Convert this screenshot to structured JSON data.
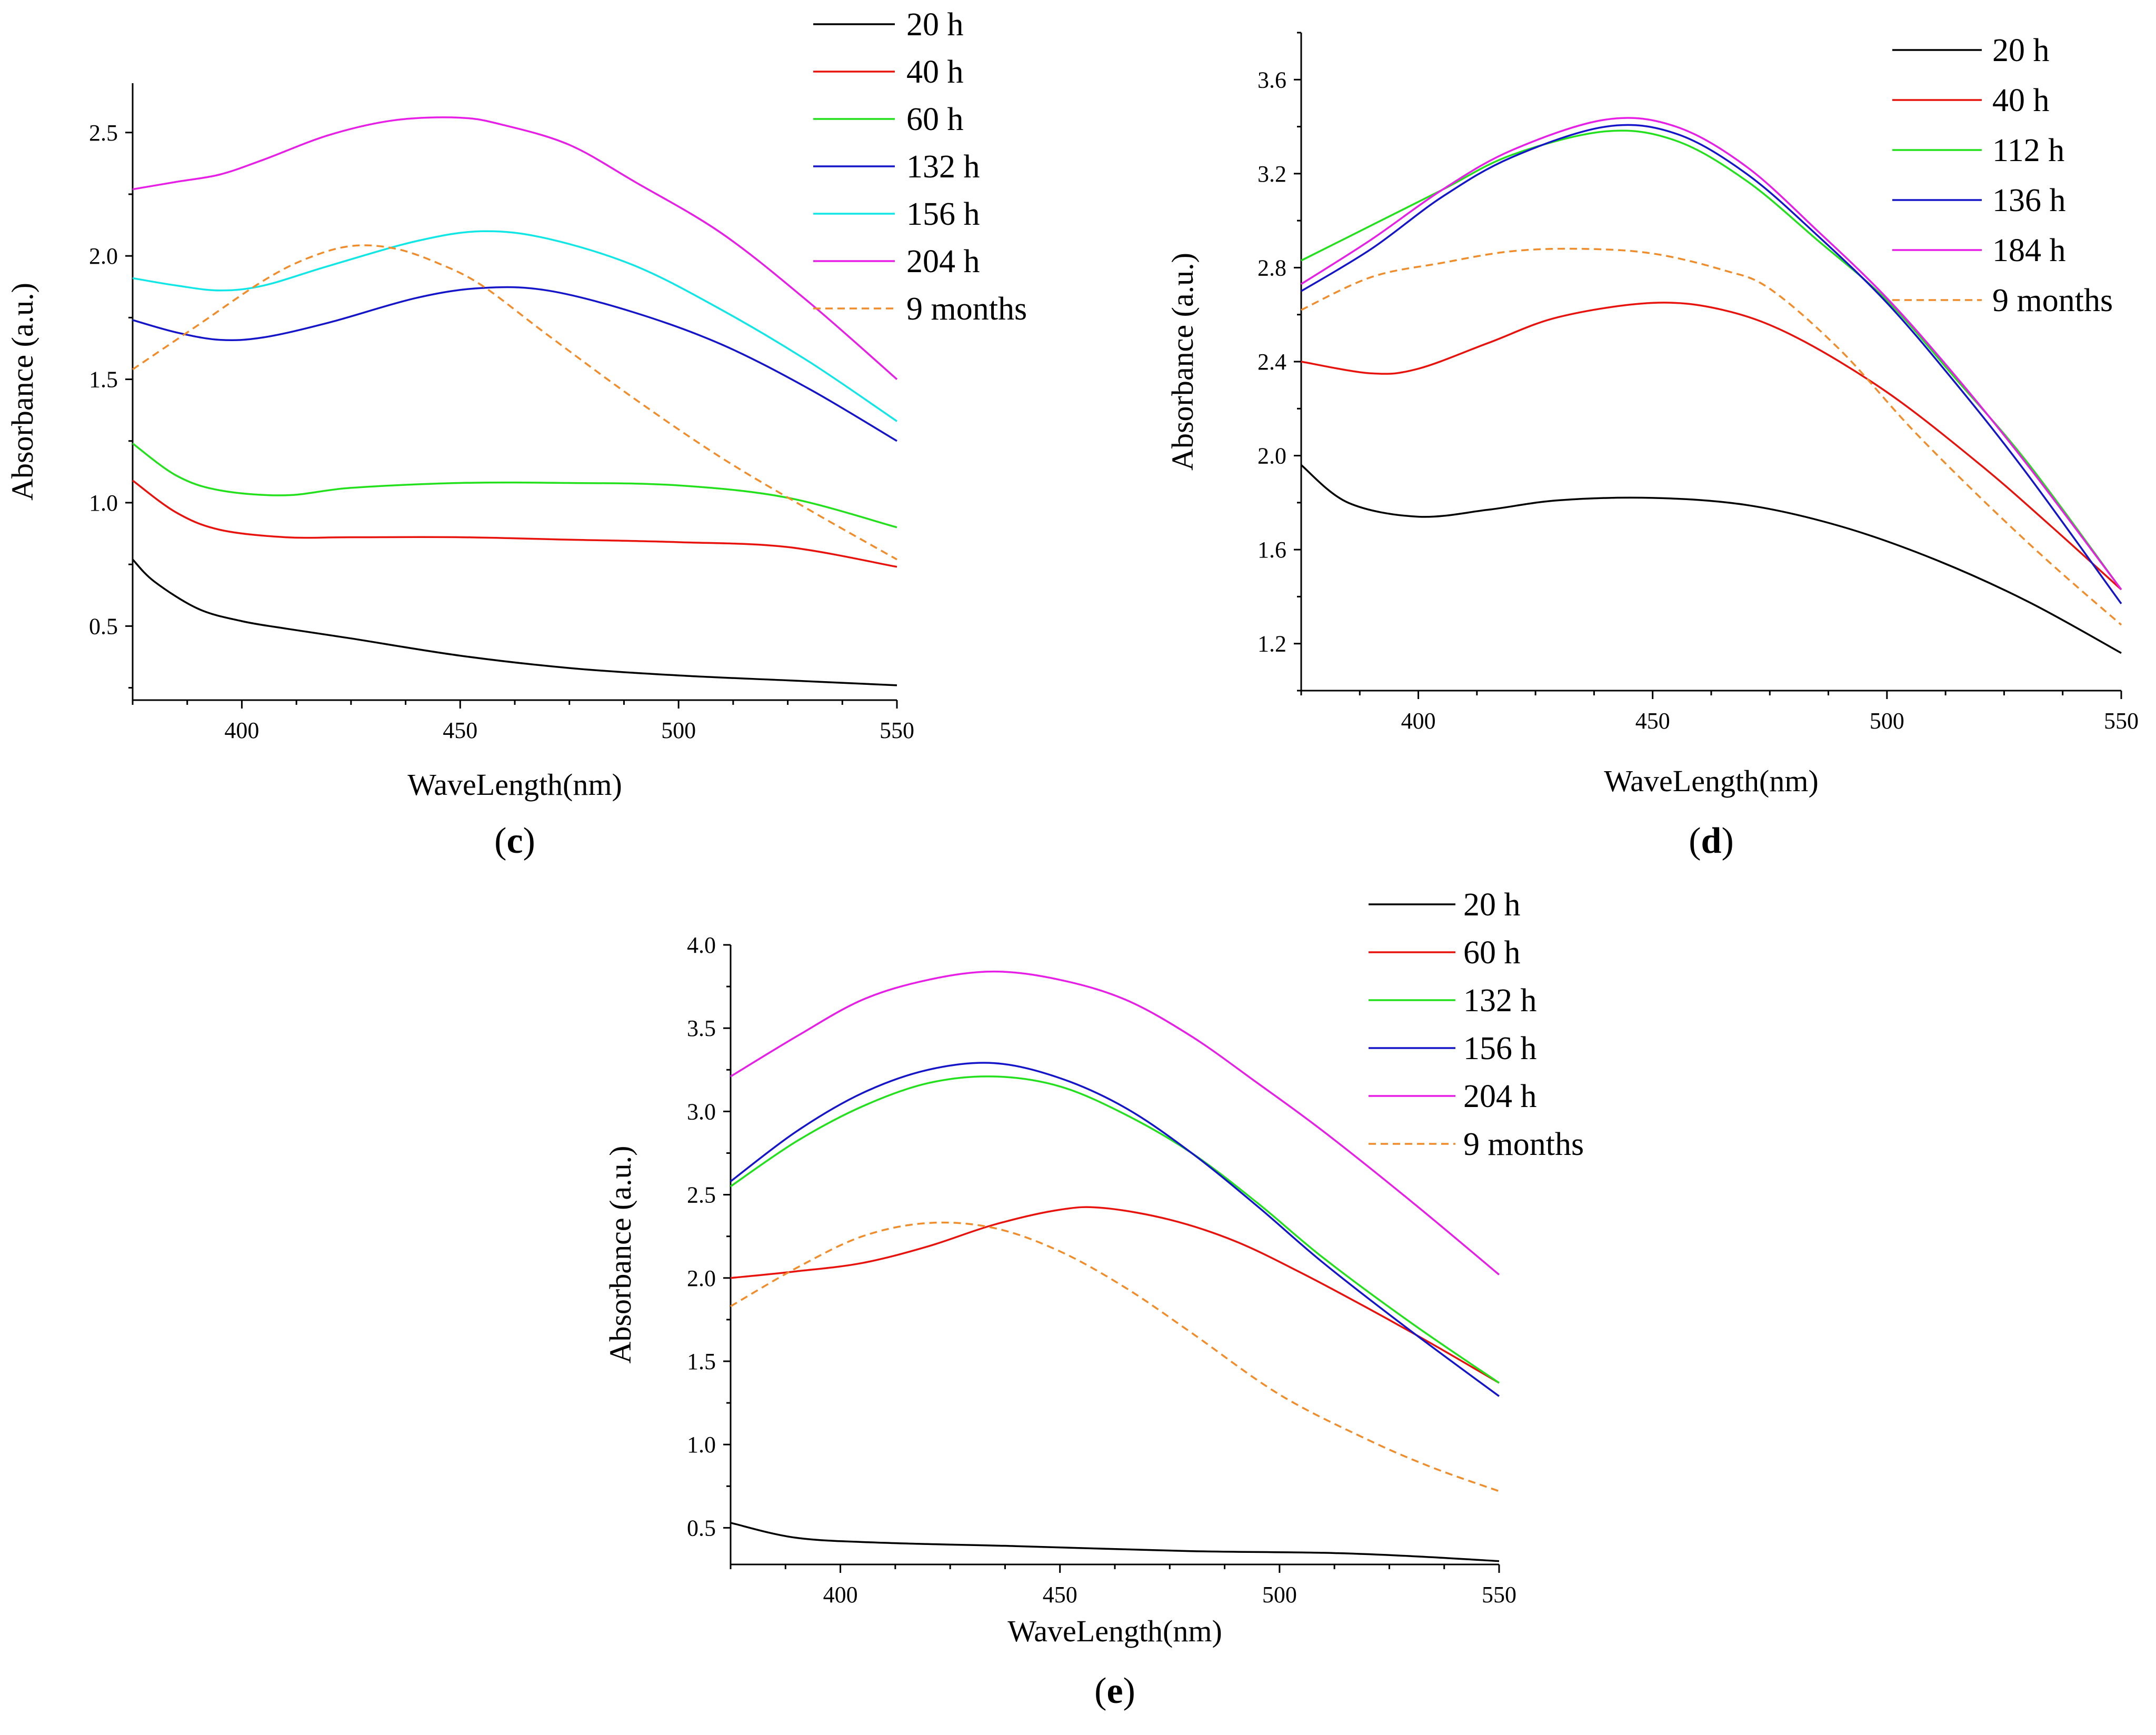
{
  "chart_data": [
    {
      "type": "line",
      "panel_label": "c",
      "xlabel": "WaveLength(nm)",
      "ylabel": "Absorbance (a.u.)",
      "xlim": [
        375,
        550
      ],
      "ylim": [
        0.2,
        2.7
      ],
      "xticks": [
        400,
        450,
        500,
        550
      ],
      "yticks": [
        0.5,
        1.0,
        1.5,
        2.0,
        2.5
      ],
      "ytick_labels": [
        "0.5",
        "1.0",
        "1.5",
        "2.0",
        "2.5"
      ],
      "legend_position": "top-right",
      "series": [
        {
          "name": "20 h",
          "color": "#000000",
          "dashed": false,
          "x": [
            375,
            380,
            390,
            400,
            410,
            425,
            450,
            475,
            500,
            525,
            550
          ],
          "values": [
            0.77,
            0.68,
            0.57,
            0.52,
            0.49,
            0.45,
            0.38,
            0.33,
            0.3,
            0.28,
            0.26
          ]
        },
        {
          "name": "40 h",
          "color": "#e8120c",
          "dashed": false,
          "x": [
            375,
            385,
            395,
            410,
            425,
            450,
            475,
            500,
            525,
            550
          ],
          "values": [
            1.09,
            0.96,
            0.89,
            0.86,
            0.86,
            0.86,
            0.85,
            0.84,
            0.82,
            0.74
          ]
        },
        {
          "name": "60 h",
          "color": "#22e01b",
          "dashed": false,
          "x": [
            375,
            385,
            395,
            410,
            425,
            450,
            475,
            500,
            525,
            550
          ],
          "values": [
            1.24,
            1.11,
            1.05,
            1.03,
            1.06,
            1.08,
            1.08,
            1.07,
            1.02,
            0.9
          ]
        },
        {
          "name": "132 h",
          "color": "#1414c8",
          "dashed": false,
          "x": [
            375,
            385,
            395,
            405,
            420,
            440,
            455,
            470,
            490,
            510,
            530,
            550
          ],
          "values": [
            1.74,
            1.69,
            1.66,
            1.67,
            1.73,
            1.83,
            1.87,
            1.86,
            1.77,
            1.64,
            1.46,
            1.25
          ]
        },
        {
          "name": "156 h",
          "color": "#10e6e6",
          "dashed": false,
          "x": [
            375,
            385,
            395,
            405,
            420,
            440,
            455,
            470,
            490,
            510,
            530,
            550
          ],
          "values": [
            1.91,
            1.88,
            1.86,
            1.88,
            1.96,
            2.06,
            2.1,
            2.07,
            1.96,
            1.78,
            1.57,
            1.33
          ]
        },
        {
          "name": "204 h",
          "color": "#e61ee6",
          "dashed": false,
          "x": [
            375,
            385,
            395,
            405,
            420,
            435,
            450,
            460,
            475,
            490,
            510,
            530,
            550
          ],
          "values": [
            2.27,
            2.3,
            2.33,
            2.39,
            2.49,
            2.55,
            2.56,
            2.53,
            2.45,
            2.3,
            2.09,
            1.81,
            1.5
          ]
        },
        {
          "name": "9 months",
          "color": "#f08c2a",
          "dashed": true,
          "x": [
            375,
            390,
            405,
            415,
            425,
            435,
            445,
            455,
            470,
            490,
            510,
            530,
            550
          ],
          "values": [
            1.54,
            1.72,
            1.9,
            1.99,
            2.04,
            2.03,
            1.97,
            1.88,
            1.68,
            1.42,
            1.18,
            0.97,
            0.77
          ]
        }
      ]
    },
    {
      "type": "line",
      "panel_label": "d",
      "xlabel": "WaveLength(nm)",
      "ylabel": "Absorbance (a.u.)",
      "xlim": [
        375,
        550
      ],
      "ylim": [
        1.0,
        3.8
      ],
      "xticks": [
        400,
        450,
        500,
        550
      ],
      "yticks": [
        1.2,
        1.6,
        2.0,
        2.4,
        2.8,
        3.2,
        3.6
      ],
      "ytick_labels": [
        "1.2",
        "1.6",
        "2.0",
        "2.4",
        "2.8",
        "3.2",
        "3.6"
      ],
      "legend_position": "top-right",
      "series": [
        {
          "name": "20 h",
          "color": "#000000",
          "dashed": false,
          "x": [
            375,
            385,
            400,
            415,
            430,
            450,
            470,
            490,
            510,
            530,
            550
          ],
          "values": [
            1.96,
            1.8,
            1.74,
            1.77,
            1.81,
            1.82,
            1.79,
            1.7,
            1.56,
            1.38,
            1.16
          ]
        },
        {
          "name": "40 h",
          "color": "#e8120c",
          "dashed": false,
          "x": [
            375,
            390,
            400,
            415,
            430,
            450,
            465,
            480,
            500,
            520,
            535,
            550
          ],
          "values": [
            2.4,
            2.35,
            2.37,
            2.48,
            2.59,
            2.65,
            2.62,
            2.51,
            2.27,
            1.96,
            1.7,
            1.43
          ]
        },
        {
          "name": "112 h",
          "color": "#22e01b",
          "dashed": false,
          "x": [
            375,
            390,
            405,
            420,
            440,
            455,
            470,
            485,
            500,
            515,
            530,
            550
          ],
          "values": [
            2.83,
            2.98,
            3.13,
            3.28,
            3.38,
            3.34,
            3.17,
            2.92,
            2.66,
            2.32,
            1.97,
            1.43
          ]
        },
        {
          "name": "136 h",
          "color": "#1414c8",
          "dashed": false,
          "x": [
            375,
            390,
            405,
            420,
            440,
            455,
            470,
            485,
            500,
            515,
            530,
            550
          ],
          "values": [
            2.7,
            2.88,
            3.1,
            3.27,
            3.4,
            3.37,
            3.2,
            2.94,
            2.65,
            2.3,
            1.92,
            1.37
          ]
        },
        {
          "name": "184 h",
          "color": "#e61ee6",
          "dashed": false,
          "x": [
            375,
            390,
            405,
            420,
            440,
            455,
            470,
            485,
            500,
            515,
            530,
            550
          ],
          "values": [
            2.73,
            2.92,
            3.13,
            3.3,
            3.43,
            3.4,
            3.23,
            2.96,
            2.67,
            2.33,
            1.96,
            1.43
          ]
        },
        {
          "name": "9 months",
          "color": "#f08c2a",
          "dashed": true,
          "x": [
            375,
            390,
            405,
            420,
            435,
            450,
            465,
            475,
            490,
            505,
            520,
            535,
            550
          ],
          "values": [
            2.62,
            2.76,
            2.82,
            2.87,
            2.88,
            2.86,
            2.79,
            2.71,
            2.45,
            2.12,
            1.82,
            1.54,
            1.28
          ]
        }
      ]
    },
    {
      "type": "line",
      "panel_label": "e",
      "xlabel": "WaveLength(nm)",
      "ylabel": "Absorbance (a.u.)",
      "xlim": [
        375,
        550
      ],
      "ylim": [
        0.28,
        4.0
      ],
      "xticks": [
        400,
        450,
        500,
        550
      ],
      "yticks": [
        0.5,
        1.0,
        1.5,
        2.0,
        2.5,
        3.0,
        3.5,
        4.0
      ],
      "ytick_labels": [
        "0.5",
        "1.0",
        "1.5",
        "2.0",
        "2.5",
        "3.0",
        "3.5",
        "4.0"
      ],
      "legend_position": "top-right",
      "series": [
        {
          "name": "20 h",
          "color": "#000000",
          "dashed": false,
          "x": [
            375,
            390,
            410,
            440,
            480,
            510,
            530,
            550
          ],
          "values": [
            0.53,
            0.44,
            0.41,
            0.39,
            0.36,
            0.35,
            0.33,
            0.3
          ]
        },
        {
          "name": "60 h",
          "color": "#e8120c",
          "dashed": false,
          "x": [
            375,
            390,
            405,
            420,
            435,
            450,
            460,
            475,
            490,
            505,
            520,
            535,
            550
          ],
          "values": [
            2.0,
            2.04,
            2.09,
            2.19,
            2.32,
            2.41,
            2.42,
            2.35,
            2.22,
            2.03,
            1.82,
            1.6,
            1.37
          ]
        },
        {
          "name": "132 h",
          "color": "#22e01b",
          "dashed": false,
          "x": [
            375,
            390,
            405,
            420,
            435,
            450,
            465,
            480,
            495,
            510,
            530,
            550
          ],
          "values": [
            2.55,
            2.82,
            3.03,
            3.17,
            3.21,
            3.15,
            2.98,
            2.75,
            2.45,
            2.12,
            1.73,
            1.37
          ]
        },
        {
          "name": "156 h",
          "color": "#1414c8",
          "dashed": false,
          "x": [
            375,
            390,
            405,
            420,
            435,
            450,
            465,
            480,
            495,
            510,
            530,
            550
          ],
          "values": [
            2.58,
            2.88,
            3.11,
            3.25,
            3.29,
            3.2,
            3.02,
            2.75,
            2.43,
            2.09,
            1.68,
            1.29
          ]
        },
        {
          "name": "204 h",
          "color": "#e61ee6",
          "dashed": false,
          "x": [
            375,
            390,
            405,
            420,
            435,
            450,
            465,
            480,
            495,
            510,
            530,
            550
          ],
          "values": [
            3.21,
            3.45,
            3.67,
            3.79,
            3.84,
            3.79,
            3.67,
            3.45,
            3.17,
            2.88,
            2.46,
            2.02
          ]
        },
        {
          "name": "9 months",
          "color": "#f08c2a",
          "dashed": true,
          "x": [
            375,
            390,
            405,
            420,
            435,
            450,
            465,
            480,
            500,
            520,
            535,
            550
          ],
          "values": [
            1.83,
            2.06,
            2.25,
            2.33,
            2.3,
            2.16,
            1.94,
            1.67,
            1.3,
            1.03,
            0.86,
            0.72
          ]
        }
      ]
    }
  ]
}
